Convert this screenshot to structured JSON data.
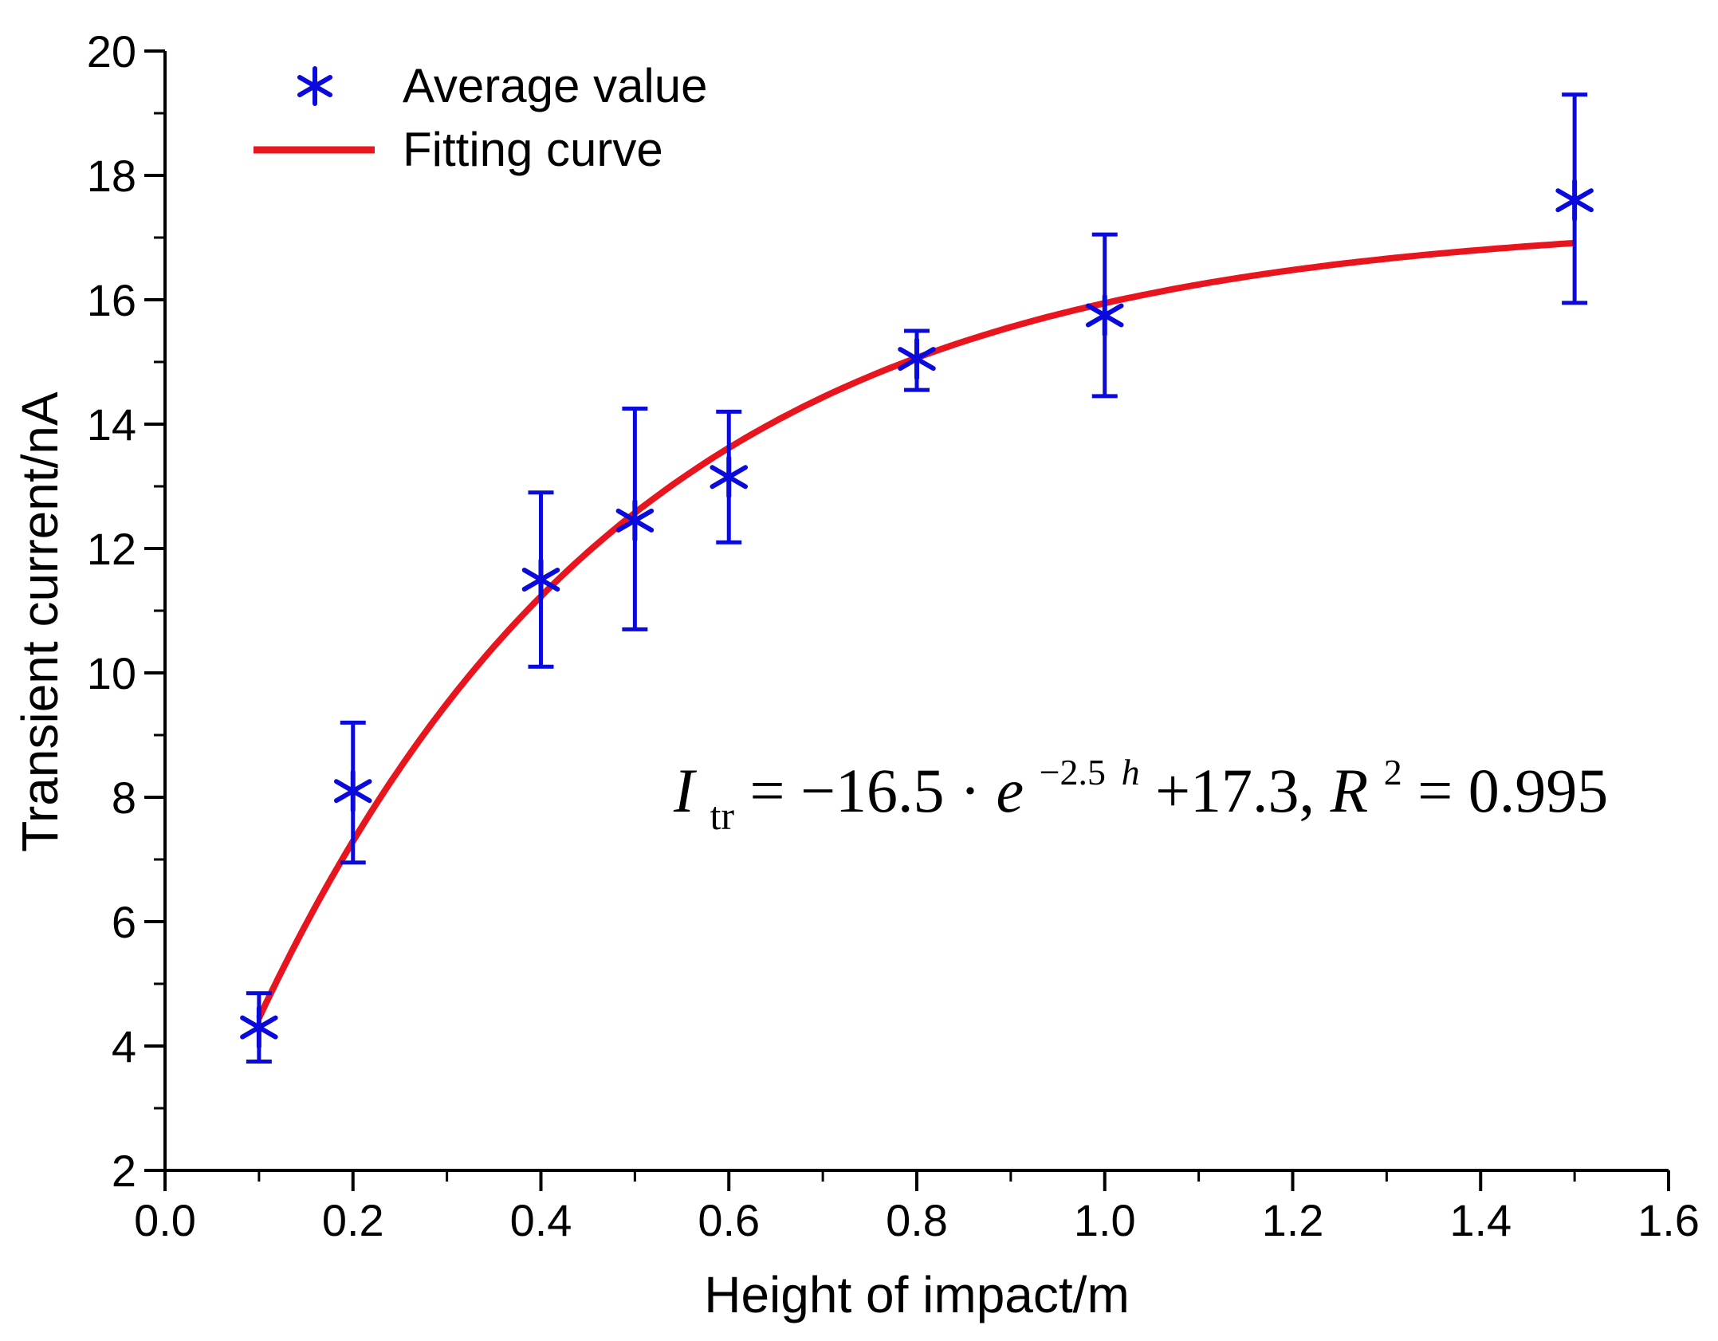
{
  "chart_data": {
    "type": "scatter",
    "title": "",
    "xlabel": "Height of impact/m",
    "ylabel": "Transient current/nA",
    "xlim": [
      0.0,
      1.6
    ],
    "ylim": [
      2,
      20
    ],
    "x_ticks": [
      "0.0",
      "0.2",
      "0.4",
      "0.6",
      "0.8",
      "1.0",
      "1.2",
      "1.4",
      "1.6"
    ],
    "y_ticks": [
      "2",
      "4",
      "6",
      "8",
      "10",
      "12",
      "14",
      "16",
      "18",
      "20"
    ],
    "x_tick_values": [
      0.0,
      0.2,
      0.4,
      0.6,
      0.8,
      1.0,
      1.2,
      1.4,
      1.6
    ],
    "y_tick_values": [
      2,
      4,
      6,
      8,
      10,
      12,
      14,
      16,
      18,
      20
    ],
    "x_minor_step": 0.1,
    "y_minor_step": 1,
    "grid": false,
    "legend_position": "top-left",
    "series": [
      {
        "name": "Average value",
        "kind": "scatter-errorbar",
        "marker": "asterisk",
        "color": "#0a0adc",
        "x": [
          0.1,
          0.2,
          0.4,
          0.5,
          0.6,
          0.8,
          1.0,
          1.5
        ],
        "y": [
          4.3,
          8.1,
          11.5,
          12.45,
          13.15,
          15.05,
          15.75,
          17.6
        ],
        "err_low": [
          3.75,
          6.95,
          10.1,
          10.7,
          12.1,
          14.55,
          14.45,
          15.95
        ],
        "err_high": [
          4.85,
          9.2,
          12.9,
          14.25,
          14.2,
          15.5,
          17.05,
          19.3
        ]
      },
      {
        "name": "Fitting curve",
        "kind": "line",
        "color": "#e8141e",
        "model": {
          "a": -16.5,
          "b": -2.5,
          "c": 17.3
        },
        "x_range": [
          0.1,
          1.5
        ]
      }
    ],
    "annotation": {
      "symbol": "I",
      "subscript": "tr",
      "rhs_start": " = −16.5 · ",
      "exp_base": "e",
      "exponent_num": "−2.5",
      "exponent_var": "h",
      "rhs_end": " +17.3, ",
      "r_symbol": "R",
      "r_power": "2",
      "r_value": " = 0.995"
    }
  }
}
